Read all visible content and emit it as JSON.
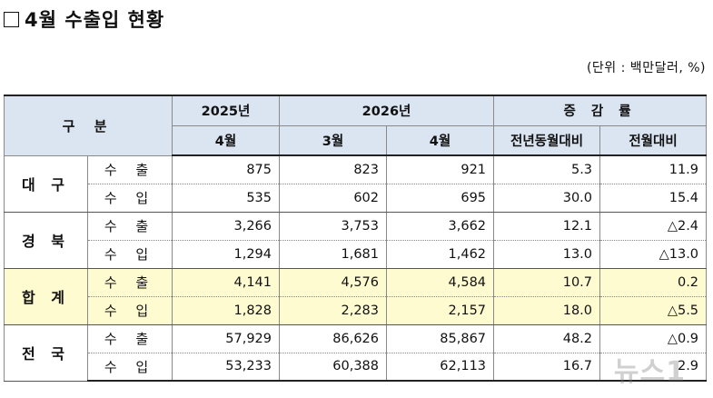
{
  "title": "4월 수출입 현황",
  "unit": "(단위 : 백만달러, %)",
  "table": {
    "header": {
      "category": "구 분",
      "year_2025": "2025년",
      "year_2026": "2026년",
      "change_rate": "증 감 률",
      "col_2025_apr": "4월",
      "col_2026_mar": "3월",
      "col_2026_apr": "4월",
      "col_yoy": "전년동월대비",
      "col_mom": "전월대비"
    },
    "groups": [
      {
        "region": "대 구",
        "rows": [
          {
            "kind": "수 출",
            "v2025_apr": "875",
            "v2026_mar": "823",
            "v2026_apr": "921",
            "yoy": "5.3",
            "mom": "11.9"
          },
          {
            "kind": "수 입",
            "v2025_apr": "535",
            "v2026_mar": "602",
            "v2026_apr": "695",
            "yoy": "30.0",
            "mom": "15.4"
          }
        ]
      },
      {
        "region": "경 북",
        "rows": [
          {
            "kind": "수 출",
            "v2025_apr": "3,266",
            "v2026_mar": "3,753",
            "v2026_apr": "3,662",
            "yoy": "12.1",
            "mom": "△2.4"
          },
          {
            "kind": "수 입",
            "v2025_apr": "1,294",
            "v2026_mar": "1,681",
            "v2026_apr": "1,462",
            "yoy": "13.0",
            "mom": "△13.0"
          }
        ]
      },
      {
        "region": "합 계",
        "rows": [
          {
            "kind": "수 출",
            "v2025_apr": "4,141",
            "v2026_mar": "4,576",
            "v2026_apr": "4,584",
            "yoy": "10.7",
            "mom": "0.2"
          },
          {
            "kind": "수 입",
            "v2025_apr": "1,828",
            "v2026_mar": "2,283",
            "v2026_apr": "2,157",
            "yoy": "18.0",
            "mom": "△5.5"
          }
        ]
      },
      {
        "region": "전 국",
        "rows": [
          {
            "kind": "수 출",
            "v2025_apr": "57,929",
            "v2026_mar": "86,626",
            "v2026_apr": "85,867",
            "yoy": "48.2",
            "mom": "△0.9"
          },
          {
            "kind": "수 입",
            "v2025_apr": "53,233",
            "v2026_mar": "60,388",
            "v2026_apr": "62,113",
            "yoy": "16.7",
            "mom": "2.9"
          }
        ]
      }
    ]
  },
  "watermark": "뉴스1",
  "colors": {
    "header_bg": "#dbe4f1",
    "total_bg": "#fffbd0"
  }
}
